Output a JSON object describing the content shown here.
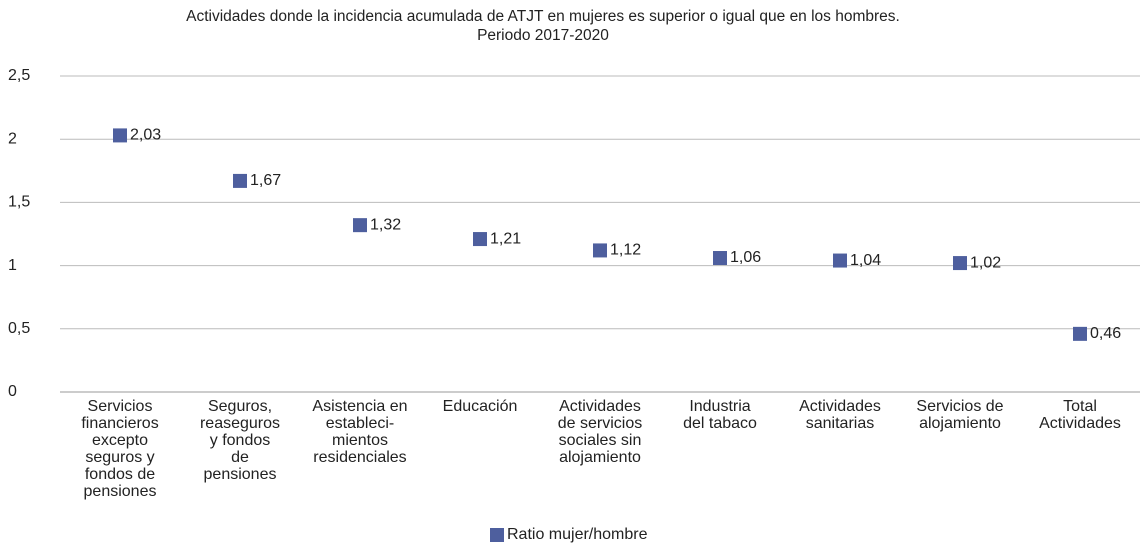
{
  "chart_data": {
    "type": "scatter",
    "title": "Actividades donde la incidencia acumulada de ATJT en mujeres es superior o igual que en los hombres.",
    "subtitle": "Periodo 2017-2020",
    "categories": [
      "Servicios\nfinancieros\nexcepto\nseguros y\nfondos de\npensiones",
      "Seguros,\nreaseguros\ny fondos\nde\npensiones",
      "Asistencia en\nestableci-\nmientos\nresidenciales",
      "Educación",
      "Actividades\nde servicios\nsociales sin\nalojamiento",
      "Industria\ndel tabaco",
      "Actividades\nsanitarias",
      "Servicios de\nalojamiento",
      "Total\nActividades"
    ],
    "series": [
      {
        "name": "Ratio mujer/hombre",
        "color": "#4e5f9e",
        "values": [
          2.03,
          1.67,
          1.32,
          1.21,
          1.12,
          1.06,
          1.04,
          1.02,
          0.46
        ],
        "value_labels": [
          "2,03",
          "1,67",
          "1,32",
          "1,21",
          "1,12",
          "1,06",
          "1,04",
          "1,02",
          "0,46"
        ]
      }
    ],
    "ylim": [
      0,
      2.5
    ],
    "yticks": [
      0,
      {
        "value": 0.5,
        "label": "0,5"
      },
      1,
      {
        "value": 1.5,
        "label": "1,5"
      },
      2,
      {
        "value": 2.5,
        "label": "2,5"
      }
    ],
    "grid": true,
    "legend": "bottom"
  }
}
